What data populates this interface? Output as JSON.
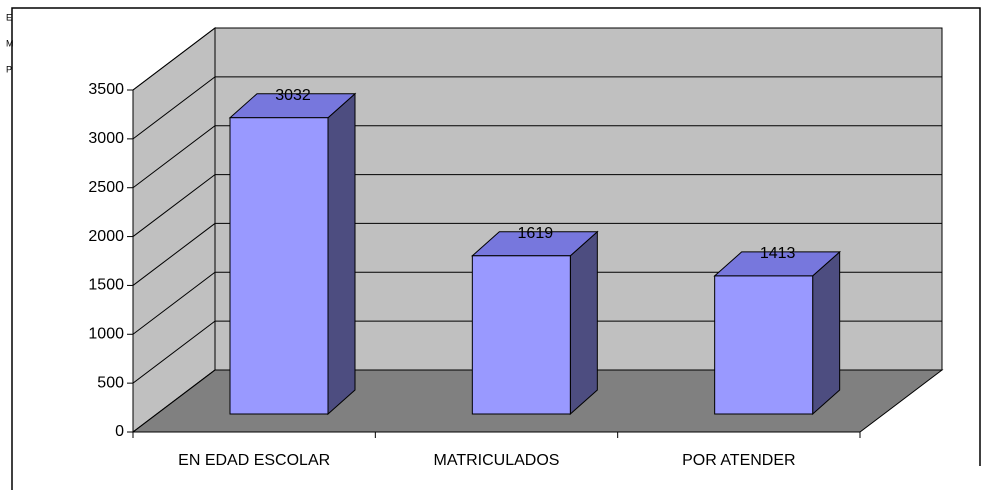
{
  "chart_data": {
    "type": "bar3d",
    "side_labels": [
      "E",
      "M",
      "P"
    ],
    "categories": [
      "EN EDAD ESCOLAR",
      "MATRICULADOS",
      "POR ATENDER"
    ],
    "values": [
      3032,
      1619,
      1413
    ],
    "color": "#9999ff",
    "ylim": [
      0,
      3500
    ],
    "yticks": [
      0,
      500,
      1000,
      1500,
      2000,
      2500,
      3000,
      3500
    ],
    "grid": true
  }
}
